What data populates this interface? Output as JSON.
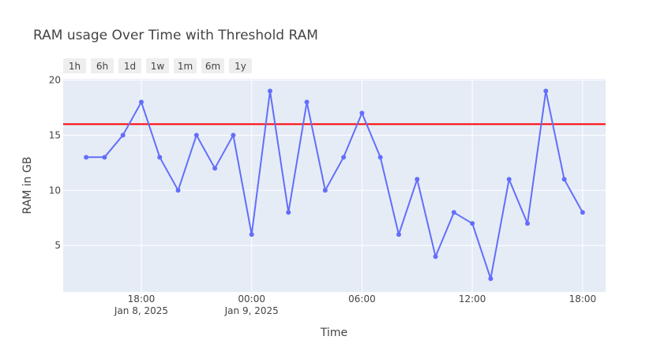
{
  "chart_data": {
    "type": "line",
    "title": "RAM usage Over Time with Threshold RAM",
    "xlabel": "Time",
    "ylabel": "RAM in GB",
    "x_axis": "datetime",
    "x_range": [
      "2025-01-08T13:45",
      "2025-01-09T19:15"
    ],
    "ylim": [
      0.8,
      20.1
    ],
    "y_ticks": [
      5,
      10,
      15,
      20
    ],
    "x_ticks": [
      {
        "at": "2025-01-08T18:00",
        "time": "18:00",
        "date": "Jan 8, 2025"
      },
      {
        "at": "2025-01-09T00:00",
        "time": "00:00",
        "date": "Jan 9, 2025"
      },
      {
        "at": "2025-01-09T06:00",
        "time": "06:00",
        "date": ""
      },
      {
        "at": "2025-01-09T12:00",
        "time": "12:00",
        "date": ""
      },
      {
        "at": "2025-01-09T18:00",
        "time": "18:00",
        "date": ""
      }
    ],
    "grid": true,
    "series": [
      {
        "color": "#636efa",
        "x": [
          "2025-01-08T15:00",
          "2025-01-08T16:00",
          "2025-01-08T17:00",
          "2025-01-08T18:00",
          "2025-01-08T19:00",
          "2025-01-08T20:00",
          "2025-01-08T21:00",
          "2025-01-08T22:00",
          "2025-01-08T23:00",
          "2025-01-09T00:00",
          "2025-01-09T01:00",
          "2025-01-09T02:00",
          "2025-01-09T03:00",
          "2025-01-09T04:00",
          "2025-01-09T05:00",
          "2025-01-09T06:00",
          "2025-01-09T07:00",
          "2025-01-09T08:00",
          "2025-01-09T09:00",
          "2025-01-09T10:00",
          "2025-01-09T11:00",
          "2025-01-09T12:00",
          "2025-01-09T13:00",
          "2025-01-09T14:00",
          "2025-01-09T15:00",
          "2025-01-09T16:00",
          "2025-01-09T17:00",
          "2025-01-09T18:00"
        ],
        "values": [
          13,
          13,
          15,
          18,
          13,
          10,
          15,
          12,
          15,
          6,
          19,
          8,
          18,
          10,
          13,
          17,
          13,
          6,
          11,
          4,
          8,
          7,
          2,
          11,
          7,
          19,
          11,
          8
        ]
      }
    ],
    "threshold": {
      "value": 16,
      "color": "#ff0000"
    },
    "range_selector": [
      "1h",
      "6h",
      "1d",
      "1w",
      "1m",
      "6m",
      "1y"
    ]
  }
}
